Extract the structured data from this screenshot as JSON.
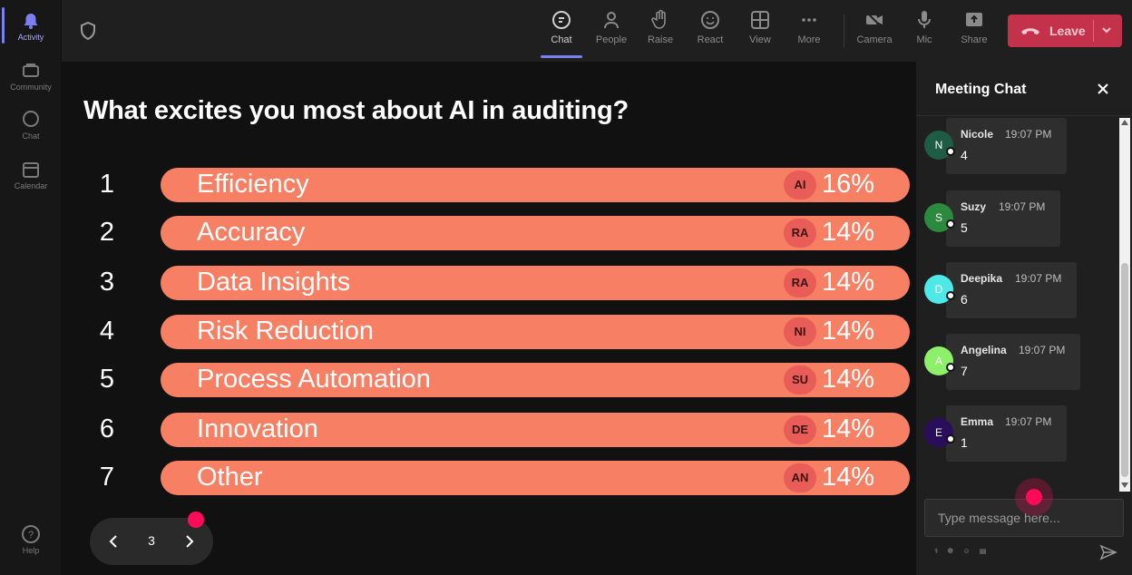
{
  "rail": {
    "items": [
      {
        "label": "Activity",
        "icon": "bell-icon"
      },
      {
        "label": "Community",
        "icon": "community-icon"
      },
      {
        "label": "Chat",
        "icon": "chat-icon"
      },
      {
        "label": "Calendar",
        "icon": "calendar-icon"
      }
    ],
    "help": {
      "label": "Help",
      "icon": "help-icon"
    }
  },
  "toolbar": {
    "buttons": [
      {
        "label": "Chat",
        "icon": "chat-icon"
      },
      {
        "label": "People",
        "icon": "people-icon"
      },
      {
        "label": "Raise",
        "icon": "raise-hand-icon"
      },
      {
        "label": "React",
        "icon": "react-icon"
      },
      {
        "label": "View",
        "icon": "view-icon"
      },
      {
        "label": "More",
        "icon": "more-icon"
      },
      {
        "label": "Camera",
        "icon": "camera-off-icon"
      },
      {
        "label": "Mic",
        "icon": "mic-icon"
      },
      {
        "label": "Share",
        "icon": "share-icon"
      }
    ],
    "leave_label": "Leave"
  },
  "poll": {
    "title": "What excites you most about AI in auditing?",
    "options": [
      {
        "rank": "1",
        "label": "Efficiency",
        "badge": "AI",
        "percent": "16%"
      },
      {
        "rank": "2",
        "label": "Accuracy",
        "badge": "RA",
        "percent": "14%"
      },
      {
        "rank": "3",
        "label": "Data Insights",
        "badge": "RA",
        "percent": "14%"
      },
      {
        "rank": "4",
        "label": "Risk Reduction",
        "badge": "NI",
        "percent": "14%"
      },
      {
        "rank": "5",
        "label": "Process Automation",
        "badge": "SU",
        "percent": "14%"
      },
      {
        "rank": "6",
        "label": "Innovation",
        "badge": "DE",
        "percent": "14%"
      },
      {
        "rank": "7",
        "label": "Other",
        "badge": "AN",
        "percent": "14%"
      }
    ],
    "page": "3"
  },
  "chat": {
    "title": "Meeting Chat",
    "messages": [
      {
        "initial": "N",
        "name": "Nicole",
        "time": "19:07 PM",
        "text": "4",
        "color": "#1e5c46"
      },
      {
        "initial": "S",
        "name": "Suzy",
        "time": "19:07 PM",
        "text": "5",
        "color": "#2b8a3e"
      },
      {
        "initial": "D",
        "name": "Deepika",
        "time": "19:07 PM",
        "text": "6",
        "color": "#4ee8e8"
      },
      {
        "initial": "A",
        "name": "Angelina",
        "time": "19:07 PM",
        "text": "7",
        "color": "#8ef06a"
      },
      {
        "initial": "E",
        "name": "Emma",
        "time": "19:07 PM",
        "text": "1",
        "color": "#2a0e5c"
      }
    ],
    "input_placeholder": "Type message here...",
    "compose_tools": "⚕ ❁ ☺ ▤"
  }
}
